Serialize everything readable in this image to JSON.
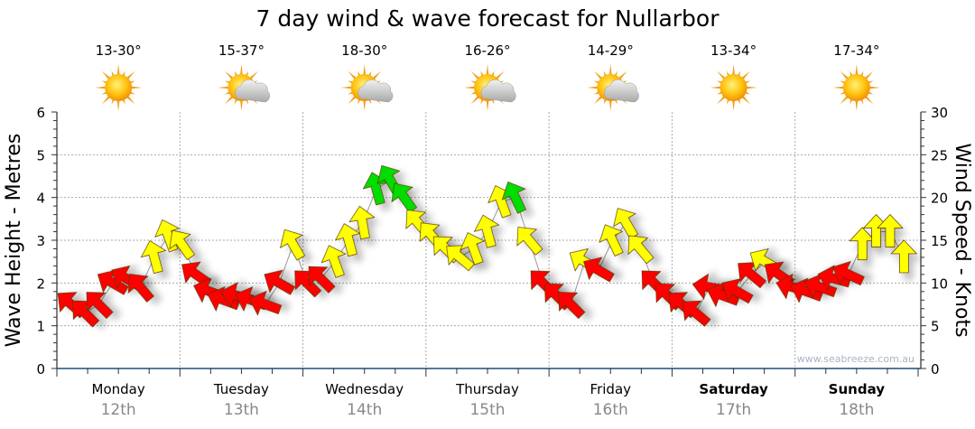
{
  "chart_data": {
    "type": "scatter",
    "title": "7 day wind & wave forecast for Nullarbor",
    "ylabel": "Wave Height - Metres",
    "y2label": "Wind Speed - Knots",
    "ylim": [
      0,
      6
    ],
    "y2lim": [
      0,
      30
    ],
    "yticks": [
      "0",
      "1",
      "2",
      "3",
      "4",
      "5",
      "6"
    ],
    "y2ticks": [
      "0",
      "5",
      "10",
      "15",
      "20",
      "25",
      "30"
    ],
    "grid": true,
    "watermark": "www.seabreeze.com.au",
    "days": [
      {
        "name": "Monday",
        "date": "12th",
        "temps": "13-30°",
        "icon": "sunny-icon",
        "bold": false
      },
      {
        "name": "Tuesday",
        "date": "13th",
        "temps": "15-37°",
        "icon": "partly-cloudy-icon",
        "bold": false
      },
      {
        "name": "Wednesday",
        "date": "14th",
        "temps": "18-30°",
        "icon": "partly-cloudy-icon",
        "bold": false
      },
      {
        "name": "Thursday",
        "date": "15th",
        "temps": "16-26°",
        "icon": "partly-cloudy-icon",
        "bold": false
      },
      {
        "name": "Friday",
        "date": "16th",
        "temps": "14-29°",
        "icon": "partly-cloudy-icon",
        "bold": false
      },
      {
        "name": "Saturday",
        "date": "17th",
        "temps": "13-34°",
        "icon": "sunny-icon",
        "bold": true
      },
      {
        "name": "Sunday",
        "date": "18th",
        "temps": "17-34°",
        "icon": "sunny-icon",
        "bold": true
      }
    ],
    "wind_color_thresholds_knots": [
      12,
      20
    ],
    "wind_colors": {
      "light": "#ff0000",
      "moderate": "#ffff00",
      "strong": "#00dd00"
    },
    "wind_series": [
      {
        "knots": 7.5,
        "dir": -50
      },
      {
        "knots": 6.5,
        "dir": -45
      },
      {
        "knots": 7.5,
        "dir": -45
      },
      {
        "knots": 10,
        "dir": -60
      },
      {
        "knots": 10.5,
        "dir": -60
      },
      {
        "knots": 9.5,
        "dir": -40
      },
      {
        "knots": 13,
        "dir": -15
      },
      {
        "knots": 15.5,
        "dir": -20
      },
      {
        "knots": 14.5,
        "dir": -35
      },
      {
        "knots": 11,
        "dir": -55
      },
      {
        "knots": 9,
        "dir": -70
      },
      {
        "knots": 8,
        "dir": -70
      },
      {
        "knots": 8.5,
        "dir": -75
      },
      {
        "knots": 8,
        "dir": -70
      },
      {
        "knots": 7.5,
        "dir": -70
      },
      {
        "knots": 10,
        "dir": -60
      },
      {
        "knots": 14.5,
        "dir": -30
      },
      {
        "knots": 10,
        "dir": -45
      },
      {
        "knots": 10.5,
        "dir": -45
      },
      {
        "knots": 12.5,
        "dir": -20
      },
      {
        "knots": 15,
        "dir": -15
      },
      {
        "knots": 17,
        "dir": -10
      },
      {
        "knots": 21,
        "dir": -15
      },
      {
        "knots": 22,
        "dir": -30
      },
      {
        "knots": 20,
        "dir": -35
      },
      {
        "knots": 17,
        "dir": -40
      },
      {
        "knots": 15.5,
        "dir": -40
      },
      {
        "knots": 14,
        "dir": -45
      },
      {
        "knots": 13,
        "dir": -50
      },
      {
        "knots": 14,
        "dir": -20
      },
      {
        "knots": 16,
        "dir": -15
      },
      {
        "knots": 19.5,
        "dir": -20
      },
      {
        "knots": 20,
        "dir": -25
      },
      {
        "knots": 15,
        "dir": -40
      },
      {
        "knots": 10,
        "dir": -45
      },
      {
        "knots": 8.5,
        "dir": -45
      },
      {
        "knots": 7.5,
        "dir": -45
      },
      {
        "knots": 12.5,
        "dir": -60
      },
      {
        "knots": 11.5,
        "dir": -60
      },
      {
        "knots": 15,
        "dir": -25
      },
      {
        "knots": 17,
        "dir": -30
      },
      {
        "knots": 14,
        "dir": -40
      },
      {
        "knots": 10,
        "dir": -45
      },
      {
        "knots": 8.5,
        "dir": -45
      },
      {
        "knots": 7.5,
        "dir": -50
      },
      {
        "knots": 6.5,
        "dir": -50
      },
      {
        "knots": 9.5,
        "dir": -80
      },
      {
        "knots": 8.5,
        "dir": -70
      },
      {
        "knots": 9,
        "dir": -60
      },
      {
        "knots": 11,
        "dir": -50
      },
      {
        "knots": 12.5,
        "dir": -60
      },
      {
        "knots": 11,
        "dir": -55
      },
      {
        "knots": 9.5,
        "dir": -75
      },
      {
        "knots": 9,
        "dir": -70
      },
      {
        "knots": 9.5,
        "dir": -70
      },
      {
        "knots": 10.5,
        "dir": -75
      },
      {
        "knots": 11,
        "dir": -65
      },
      {
        "knots": 14.5,
        "dir": 0
      },
      {
        "knots": 16,
        "dir": 0
      },
      {
        "knots": 16,
        "dir": 0
      },
      {
        "knots": 13,
        "dir": 0
      }
    ]
  }
}
